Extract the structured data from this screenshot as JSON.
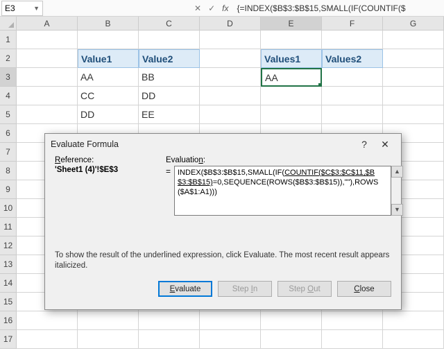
{
  "formula_bar": {
    "cell_ref": "E3",
    "cancel_glyph": "✕",
    "confirm_glyph": "✓",
    "fx_label": "fx",
    "formula_text": "{=INDEX($B$3:$B$15,SMALL(IF(COUNTIF($"
  },
  "columns": [
    "A",
    "B",
    "C",
    "D",
    "E",
    "F",
    "G"
  ],
  "rows": [
    "1",
    "2",
    "3",
    "4",
    "5",
    "6",
    "7",
    "8",
    "9",
    "10",
    "11",
    "12",
    "13",
    "14",
    "15",
    "16",
    "17"
  ],
  "active_col_index": 4,
  "active_row_index": 2,
  "data": {
    "B2": "Value1",
    "C2": "Value2",
    "B3": "AA",
    "C3": "BB",
    "B4": "CC",
    "C4": "DD",
    "B5": "DD",
    "C5": "EE",
    "E2": "Values1",
    "F2": "Values2",
    "E3": "AA"
  },
  "dialog": {
    "title": "Evaluate Formula",
    "help_glyph": "?",
    "close_glyph": "✕",
    "reference_label_prefix": "R",
    "reference_label_rest": "eference:",
    "reference_value": "'Sheet1 (4)'!$E$3",
    "evaluation_label_prefix": "Evaluatio",
    "evaluation_label_rest": "n",
    "evaluation_label_suffix": ":",
    "equals": "=",
    "eval_pre": "INDEX($B$3:$B$15,SMALL(IF(",
    "eval_underlined": "COUNTIF($C$3:$C$11,$B$3:$B$15)",
    "eval_post": "=0,SEQUENCE(ROWS($B$3:$B$15)),\"\"),ROWS($A$1:A1)))",
    "hint_text": "To show the result of the underlined expression, click Evaluate.  The most recent result appears italicized.",
    "btn_evaluate_u": "E",
    "btn_evaluate_rest": "valuate",
    "btn_stepin_pre": "Step ",
    "btn_stepin_u": "I",
    "btn_stepin_rest": "n",
    "btn_stepout_pre": "Step ",
    "btn_stepout_u": "O",
    "btn_stepout_rest": "ut",
    "btn_close_u": "C",
    "btn_close_rest": "lose"
  },
  "colors": {
    "header_bg": "#ddebf7",
    "header_border": "#9bc2e6",
    "selection": "#217346"
  }
}
